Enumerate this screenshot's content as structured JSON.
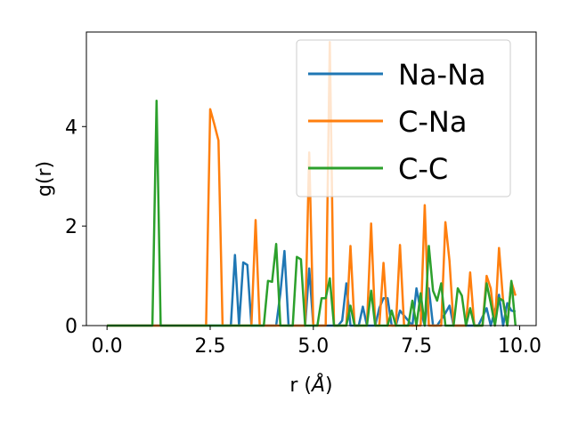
{
  "chart_data": {
    "type": "line",
    "title": "",
    "xlabel": "r (",
    "xlabel_unit": "Å",
    "xlabel_close": ")",
    "ylabel": "g(r)",
    "xlim": [
      -0.5,
      10.4
    ],
    "ylim": [
      0,
      5.9
    ],
    "xticks": [
      0.0,
      2.5,
      5.0,
      7.5,
      10.0
    ],
    "xtick_labels": [
      "0.0",
      "2.5",
      "5.0",
      "7.5",
      "10.0"
    ],
    "yticks": [
      0,
      2,
      4
    ],
    "ytick_labels": [
      "0",
      "2",
      "4"
    ],
    "grid": false,
    "legend_position": "upper-right",
    "series": [
      {
        "name": "Na-Na",
        "color": "#1f77b4",
        "x": [
          0,
          2.9,
          3.0,
          3.1,
          3.2,
          3.3,
          3.4,
          3.5,
          3.6,
          4.1,
          4.2,
          4.3,
          4.4,
          4.8,
          4.9,
          5.0,
          5.6,
          5.7,
          5.8,
          5.9,
          6.1,
          6.2,
          6.3,
          6.5,
          6.6,
          6.7,
          6.8,
          6.9,
          7.0,
          7.1,
          7.4,
          7.5,
          7.6,
          7.7,
          7.8,
          7.9,
          8.0,
          8.2,
          8.3,
          8.4,
          8.5,
          9.0,
          9.2,
          9.3,
          9.4,
          9.5,
          9.6,
          9.7,
          9.8,
          9.9
        ],
        "values": [
          0,
          0,
          0,
          1.42,
          0,
          1.27,
          1.22,
          0,
          0,
          0,
          0.65,
          1.5,
          0,
          0,
          1.15,
          0,
          0,
          0.1,
          0.85,
          0,
          0,
          0.38,
          0,
          0,
          0.35,
          0.55,
          0.55,
          0,
          0,
          0.3,
          0,
          0.75,
          0.3,
          0,
          0.75,
          0,
          0,
          0.25,
          0.4,
          0,
          0,
          0,
          0.35,
          0,
          0.3,
          0.62,
          0,
          0.45,
          0.3,
          0.28
        ]
      },
      {
        "name": "C-Na",
        "color": "#ff7f0e",
        "x": [
          0,
          2.4,
          2.5,
          2.6,
          2.7,
          2.8,
          3.5,
          3.6,
          3.7,
          4.8,
          4.9,
          5.0,
          5.3,
          5.4,
          5.5,
          5.8,
          5.9,
          6.0,
          6.3,
          6.4,
          6.5,
          6.6,
          6.7,
          6.8,
          7.0,
          7.1,
          7.2,
          7.6,
          7.7,
          7.8,
          8.1,
          8.2,
          8.3,
          8.4,
          8.7,
          8.8,
          8.9,
          9.1,
          9.2,
          9.3,
          9.4,
          9.5,
          9.6,
          9.7,
          9.8,
          9.9
        ],
        "values": [
          0,
          0,
          4.35,
          4.05,
          3.72,
          0,
          0,
          2.12,
          0,
          0,
          3.48,
          0,
          0,
          5.7,
          0,
          0,
          1.6,
          0,
          0,
          2.05,
          0,
          0,
          1.26,
          0,
          0,
          1.62,
          0,
          0,
          2.42,
          0,
          0,
          2.08,
          1.3,
          0,
          0,
          1.07,
          0,
          0,
          1.0,
          0.75,
          0,
          1.56,
          0.5,
          0,
          0.88,
          0.6
        ]
      },
      {
        "name": "C-C",
        "color": "#2ca02c",
        "x": [
          0,
          1.1,
          1.2,
          1.3,
          3.8,
          3.9,
          4.0,
          4.1,
          4.2,
          4.5,
          4.6,
          4.7,
          4.8,
          4.9,
          5.1,
          5.2,
          5.3,
          5.4,
          5.5,
          5.8,
          5.9,
          6.0,
          6.3,
          6.4,
          6.5,
          6.6,
          6.8,
          6.9,
          7.0,
          7.1,
          7.3,
          7.4,
          7.5,
          7.6,
          7.7,
          7.8,
          7.9,
          8.0,
          8.1,
          8.2,
          8.4,
          8.5,
          8.6,
          8.7,
          8.8,
          8.9,
          9.1,
          9.2,
          9.3,
          9.4,
          9.5,
          9.6,
          9.7,
          9.8,
          9.9
        ],
        "values": [
          0,
          0,
          4.52,
          0,
          0,
          0.9,
          0.88,
          1.64,
          0,
          0,
          1.38,
          1.33,
          0,
          0,
          0,
          0.55,
          0.55,
          0.95,
          0,
          0,
          0.4,
          0,
          0,
          0.7,
          0,
          0,
          0,
          0.3,
          0,
          0,
          0,
          0.5,
          0,
          0.65,
          0,
          1.6,
          0.7,
          0.5,
          0.85,
          0,
          0,
          0.75,
          0.6,
          0,
          0.35,
          0,
          0,
          0.85,
          0.45,
          0,
          0.55,
          0.5,
          0,
          0.9,
          0
        ]
      }
    ]
  }
}
